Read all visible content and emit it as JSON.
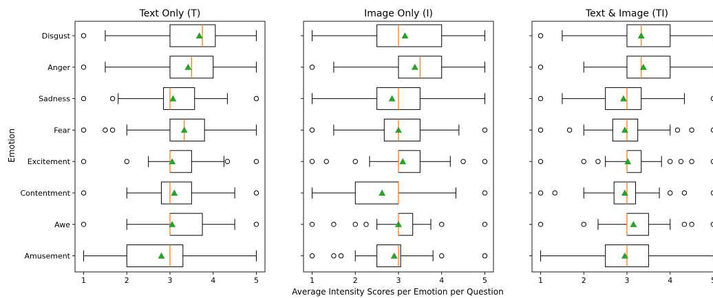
{
  "chart_data": {
    "type": "boxplot",
    "ylabel": "Emotion",
    "xlabel": "Average Intensity Scores per Emotion per Question",
    "categories": [
      "Disgust",
      "Anger",
      "Sadness",
      "Fear",
      "Excitement",
      "Contentment",
      "Awe",
      "Amusement"
    ],
    "xticks": [
      1,
      2,
      3,
      4,
      5
    ],
    "xlim": [
      0.8,
      5.2
    ],
    "colors": {
      "box": "#000000",
      "median": "#ff7f0e",
      "mean": "#2ca02c"
    },
    "panels": [
      {
        "title": "Text Only (T)",
        "boxes": [
          {
            "category": "Disgust",
            "whisker_low": 1.5,
            "q1": 3.0,
            "median": 3.75,
            "q3": 4.05,
            "whisker_high": 5.0,
            "mean": 3.68,
            "outliers": [
              1.0
            ]
          },
          {
            "category": "Anger",
            "whisker_low": 1.5,
            "q1": 3.0,
            "median": 3.5,
            "q3": 4.0,
            "whisker_high": 5.0,
            "mean": 3.42,
            "outliers": [
              1.0
            ]
          },
          {
            "category": "Sadness",
            "whisker_low": 1.8,
            "q1": 2.85,
            "median": 3.0,
            "q3": 3.57,
            "whisker_high": 4.33,
            "mean": 3.07,
            "outliers": [
              1.0,
              1.67,
              5.0
            ]
          },
          {
            "category": "Fear",
            "whisker_low": 2.0,
            "q1": 3.0,
            "median": 3.33,
            "q3": 3.8,
            "whisker_high": 5.0,
            "mean": 3.33,
            "outliers": [
              1.0,
              1.5,
              1.67
            ]
          },
          {
            "category": "Excitement",
            "whisker_low": 2.5,
            "q1": 3.0,
            "median": 3.0,
            "q3": 3.5,
            "whisker_high": 4.25,
            "mean": 3.05,
            "outliers": [
              1.0,
              2.0,
              4.33,
              5.0
            ]
          },
          {
            "category": "Contentment",
            "whisker_low": 2.0,
            "q1": 2.8,
            "median": 3.0,
            "q3": 3.5,
            "whisker_high": 4.5,
            "mean": 3.1,
            "outliers": [
              1.0,
              5.0
            ]
          },
          {
            "category": "Awe",
            "whisker_low": 2.0,
            "q1": 3.0,
            "median": 3.0,
            "q3": 3.75,
            "whisker_high": 4.5,
            "mean": 3.05,
            "outliers": [
              1.0,
              5.0
            ]
          },
          {
            "category": "Amusement",
            "whisker_low": 1.0,
            "q1": 2.0,
            "median": 3.0,
            "q3": 3.3,
            "whisker_high": 5.0,
            "mean": 2.8,
            "outliers": []
          }
        ]
      },
      {
        "title": "Image Only (I)",
        "boxes": [
          {
            "category": "Disgust",
            "whisker_low": 1.0,
            "q1": 2.5,
            "median": 3.0,
            "q3": 4.0,
            "whisker_high": 5.0,
            "mean": 3.15,
            "outliers": []
          },
          {
            "category": "Anger",
            "whisker_low": 1.5,
            "q1": 3.0,
            "median": 3.5,
            "q3": 4.0,
            "whisker_high": 5.0,
            "mean": 3.38,
            "outliers": [
              1.0
            ]
          },
          {
            "category": "Sadness",
            "whisker_low": 1.0,
            "q1": 2.5,
            "median": 3.0,
            "q3": 3.5,
            "whisker_high": 5.0,
            "mean": 2.85,
            "outliers": []
          },
          {
            "category": "Fear",
            "whisker_low": 1.5,
            "q1": 2.67,
            "median": 3.0,
            "q3": 3.5,
            "whisker_high": 4.4,
            "mean": 3.0,
            "outliers": [
              1.0,
              5.0
            ]
          },
          {
            "category": "Excitement",
            "whisker_low": 2.33,
            "q1": 3.0,
            "median": 3.0,
            "q3": 3.5,
            "whisker_high": 4.2,
            "mean": 3.1,
            "outliers": [
              1.0,
              1.33,
              2.0,
              4.5,
              5.0
            ]
          },
          {
            "category": "Contentment",
            "whisker_low": 1.0,
            "q1": 2.0,
            "median": 3.0,
            "q3": 3.0,
            "whisker_high": 4.33,
            "mean": 2.62,
            "outliers": [
              5.0
            ]
          },
          {
            "category": "Awe",
            "whisker_low": 2.5,
            "q1": 3.0,
            "median": 3.0,
            "q3": 3.33,
            "whisker_high": 3.75,
            "mean": 3.0,
            "outliers": [
              1.0,
              1.5,
              2.0,
              2.25,
              4.0,
              5.0
            ]
          },
          {
            "category": "Amusement",
            "whisker_low": 2.0,
            "q1": 2.5,
            "median": 3.0,
            "q3": 3.05,
            "whisker_high": 3.8,
            "mean": 2.9,
            "outliers": [
              1.0,
              1.5,
              1.67,
              4.0,
              5.0
            ]
          }
        ]
      },
      {
        "title": "Text & Image (TI)",
        "boxes": [
          {
            "category": "Disgust",
            "whisker_low": 1.5,
            "q1": 3.0,
            "median": 3.33,
            "q3": 4.0,
            "whisker_high": 5.0,
            "mean": 3.33,
            "outliers": [
              1.0
            ]
          },
          {
            "category": "Anger",
            "whisker_low": 2.0,
            "q1": 3.0,
            "median": 3.33,
            "q3": 4.0,
            "whisker_high": 5.0,
            "mean": 3.38,
            "outliers": [
              1.0
            ]
          },
          {
            "category": "Sadness",
            "whisker_low": 1.5,
            "q1": 2.5,
            "median": 3.0,
            "q3": 3.33,
            "whisker_high": 4.33,
            "mean": 2.92,
            "outliers": [
              1.0,
              5.0
            ]
          },
          {
            "category": "Fear",
            "whisker_low": 2.0,
            "q1": 2.67,
            "median": 3.0,
            "q3": 3.25,
            "whisker_high": 4.0,
            "mean": 2.95,
            "outliers": [
              1.0,
              1.67,
              4.17,
              4.5,
              5.0
            ]
          },
          {
            "category": "Excitement",
            "whisker_low": 2.5,
            "q1": 3.0,
            "median": 3.0,
            "q3": 3.33,
            "whisker_high": 3.8,
            "mean": 3.02,
            "outliers": [
              1.0,
              2.0,
              2.33,
              4.0,
              4.25,
              4.5,
              5.0
            ]
          },
          {
            "category": "Contentment",
            "whisker_low": 2.0,
            "q1": 2.7,
            "median": 3.0,
            "q3": 3.2,
            "whisker_high": 3.75,
            "mean": 2.95,
            "outliers": [
              1.0,
              1.33,
              4.0,
              4.33,
              5.0
            ]
          },
          {
            "category": "Awe",
            "whisker_low": 2.33,
            "q1": 3.0,
            "median": 3.0,
            "q3": 3.5,
            "whisker_high": 4.0,
            "mean": 3.15,
            "outliers": [
              1.0,
              2.0,
              4.33,
              4.5,
              5.0
            ]
          },
          {
            "category": "Amusement",
            "whisker_low": 1.0,
            "q1": 2.5,
            "median": 3.0,
            "q3": 3.5,
            "whisker_high": 5.0,
            "mean": 2.95,
            "outliers": []
          }
        ]
      }
    ]
  }
}
